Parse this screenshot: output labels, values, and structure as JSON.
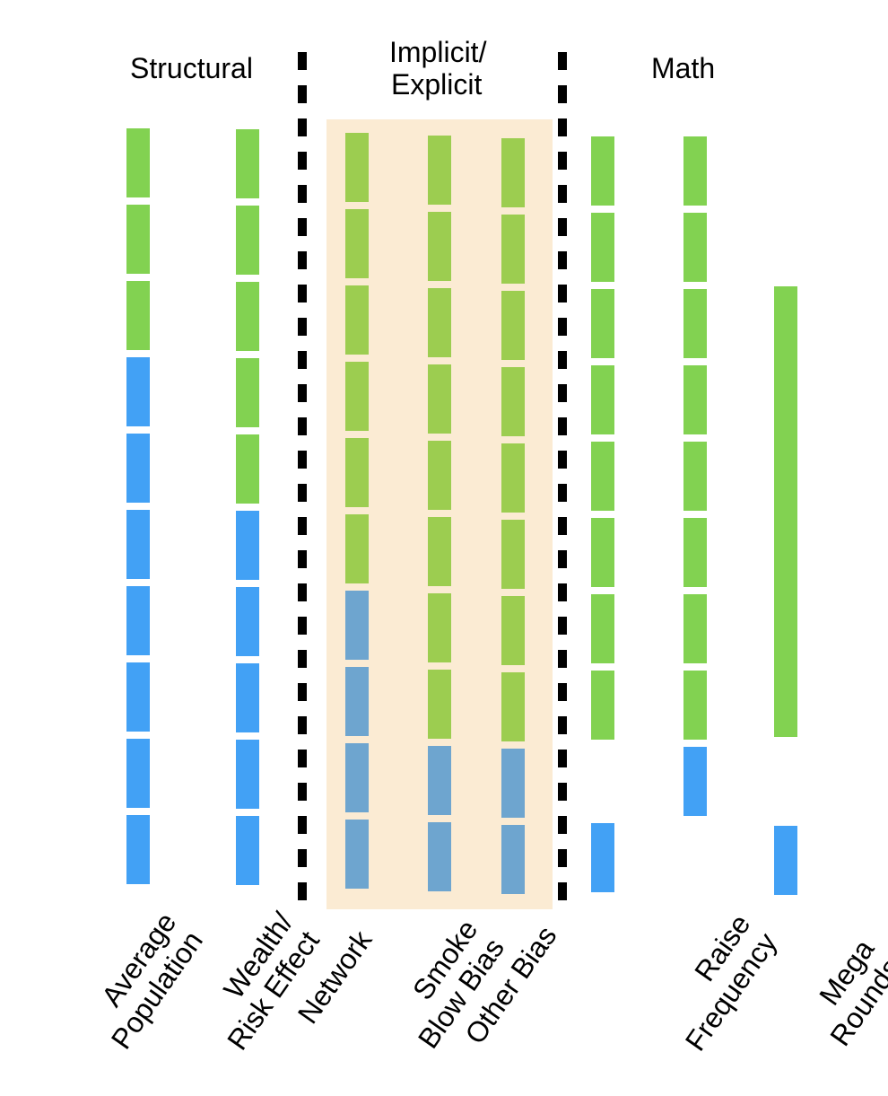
{
  "headers": {
    "structural": "Structural",
    "implicit_line1": "Implicit/",
    "implicit_line2": "Explicit",
    "math": "Math"
  },
  "colors": {
    "green": "#82d251",
    "blue": "#42a1f5",
    "muted_green": "#9ccd50",
    "muted_blue": "#6ea5cf",
    "highlight": "#fbebd3",
    "divider": "#000000"
  },
  "columns": [
    {
      "id": "average-population",
      "label_lines": [
        "Average",
        "Population"
      ],
      "segments": [
        "green",
        "green",
        "green",
        "blue",
        "blue",
        "blue",
        "blue",
        "blue",
        "blue",
        "blue"
      ]
    },
    {
      "id": "wealth-risk-effect",
      "label_lines": [
        "Wealth/",
        "Risk Effect"
      ],
      "segments": [
        "green",
        "green",
        "green",
        "green",
        "green",
        "blue",
        "blue",
        "blue",
        "blue",
        "blue"
      ]
    },
    {
      "id": "network",
      "label_lines": [
        "Network"
      ],
      "segments": [
        "muted_green",
        "muted_green",
        "muted_green",
        "muted_green",
        "muted_green",
        "muted_green",
        "muted_blue",
        "muted_blue",
        "muted_blue",
        "muted_blue"
      ]
    },
    {
      "id": "smoke-blow-bias",
      "label_lines": [
        "Smoke",
        "Blow Bias"
      ],
      "segments": [
        "muted_green",
        "muted_green",
        "muted_green",
        "muted_green",
        "muted_green",
        "muted_green",
        "muted_green",
        "muted_green",
        "muted_blue",
        "muted_blue"
      ]
    },
    {
      "id": "other-bias",
      "label_lines": [
        "Other Bias"
      ],
      "segments": [
        "muted_green",
        "muted_green",
        "muted_green",
        "muted_green",
        "muted_green",
        "muted_green",
        "muted_green",
        "muted_green",
        "muted_blue",
        "muted_blue"
      ]
    },
    {
      "id": "raise-frequency-left",
      "label_lines": [
        "Raise"
      ],
      "segments": [
        "green",
        "green",
        "green",
        "green",
        "green",
        "green",
        "green",
        "green",
        "none",
        "blue"
      ]
    },
    {
      "id": "raise-frequency-right",
      "label_lines": [
        "Frequency"
      ],
      "segments": [
        "green",
        "green",
        "green",
        "green",
        "green",
        "green",
        "green",
        "green",
        "blue"
      ]
    },
    {
      "id": "mega-rounds",
      "label_lines": [
        "Mega",
        "Rounds"
      ],
      "segments": [
        "green_merged_6",
        "blue"
      ]
    }
  ]
}
